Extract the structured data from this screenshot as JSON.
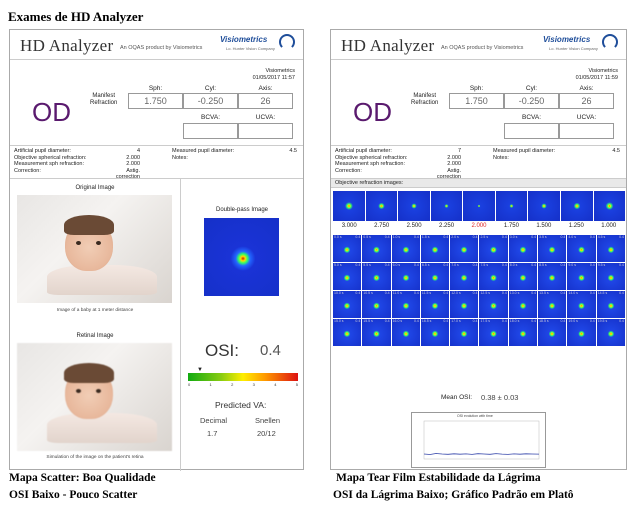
{
  "page_title": "Exames de HD Analyzer",
  "header": {
    "app_name": "HD Analyzer",
    "subtitle": "An OQAS product by Visiometrics",
    "brand": "Visiometrics",
    "brand_tagline": "Lo. Hunter Vision Company"
  },
  "left": {
    "meta_org": "Visiometrics",
    "meta_date": "01/05/2017 11:57",
    "eye": "OD",
    "manifest_label_1": "Manifest",
    "manifest_label_2": "Refraction",
    "sph_h": "Sph:",
    "cyl_h": "Cyl:",
    "axis_h": "Axis:",
    "sph": "1.750",
    "cyl": "-0.250",
    "axis": "26",
    "bcva_h": "BCVA:",
    "ucva_h": "UCVA:",
    "info": {
      "l1": "Artificial pupil diameter:",
      "v1": "4",
      "l2": "Objective spherical refraction:",
      "v2": "2.000",
      "l3": "Measurement sph refraction:",
      "v3": "2.000",
      "l4": "Correction:",
      "v4": "Astig. correction",
      "r1": "Measured pupil diameter:",
      "rv1": "4.5",
      "r2": "Notes:"
    },
    "original_image_title": "Original Image",
    "original_caption": "Image of a baby at 1 meter distance",
    "retinal_image_title": "Retinal Image",
    "retinal_caption": "Simulation of the image on the patient's retina",
    "double_pass_title": "Double-pass Image",
    "osi_label": "OSI:",
    "osi_value": "0.4",
    "scale_ticks": [
      "0",
      "1",
      "2",
      "3",
      "4",
      "5"
    ],
    "predicted_title": "Predicted VA:",
    "decimal_h": "Decimal",
    "snellen_h": "Snellen",
    "decimal_v": "1.7",
    "snellen_v": "20/12"
  },
  "right": {
    "meta_org": "Visiometrics",
    "meta_date": "01/05/2017 11:59",
    "eye": "OD",
    "manifest_label_1": "Manifest",
    "manifest_label_2": "Refraction",
    "sph_h": "Sph:",
    "cyl_h": "Cyl:",
    "axis_h": "Axis:",
    "sph": "1.750",
    "cyl": "-0.250",
    "axis": "26",
    "bcva_h": "BCVA:",
    "ucva_h": "UCVA:",
    "info": {
      "l1": "Artificial pupil diameter:",
      "v1": "7",
      "l2": "Objective spherical refraction:",
      "v2": "2.000",
      "l3": "Measurement sph refraction:",
      "v3": "2.000",
      "l4": "Correction:",
      "v4": "Astig. correction",
      "r1": "Measured pupil diameter:",
      "rv1": "4.5",
      "r2": "Notes:"
    },
    "obj_title": "Objective refraction images:",
    "obj_values": [
      "3.000",
      "2.750",
      "2.500",
      "2.250",
      "2.000",
      "1.750",
      "1.500",
      "1.250",
      "1.000"
    ],
    "obj_selected": "2.000",
    "grid_times": [
      "0.0 s",
      "0.5 s",
      "1.0 s",
      "1.5 s",
      "2.0 s",
      "2.5 s",
      "3.0 s",
      "3.5 s",
      "4.0 s",
      "4.5 s",
      "5.0 s",
      "5.5 s",
      "6.0 s",
      "6.5 s",
      "7.0 s",
      "7.5 s",
      "8.0 s",
      "8.5 s",
      "9.0 s",
      "9.5 s",
      "10.0 s",
      "10.5 s",
      "11.0 s",
      "11.5 s",
      "12.0 s",
      "12.5 s",
      "13.0 s",
      "13.5 s",
      "14.0 s",
      "14.5 s",
      "15.0 s",
      "15.5 s",
      "16.0 s",
      "16.5 s",
      "17.0 s",
      "17.5 s",
      "18.0 s",
      "18.5 s",
      "19.0 s",
      "19.5 s"
    ],
    "grid_osi": "0.4",
    "mean_label": "Mean OSI:",
    "mean_value": "0.38 ± 0.03",
    "plot_title": "OSI evolution with time"
  },
  "caption_left_1": "Mapa Scatter: Boa Qualidade",
  "caption_left_2": "OSI Baixo - Pouco Scatter",
  "caption_right_1": "Mapa Tear Film Estabilidade da Lágrima",
  "caption_right_2": "OSI da Lágrima Baixo; Gráfico Padrão em Platô"
}
